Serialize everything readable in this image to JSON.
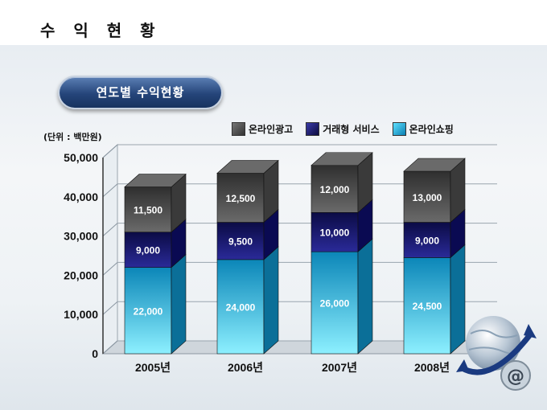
{
  "page_title": "수 익 현 황",
  "banner_title": "연도별  수익현황",
  "unit_label": "(단위 : 백만원)",
  "colors": {
    "online_ad": "#4a4a4a",
    "trade_service": "#141466",
    "online_shopping": "#1aa9d6"
  },
  "chart_data": {
    "type": "bar",
    "stacked": true,
    "categories": [
      "2005년",
      "2006년",
      "2007년",
      "2008년"
    ],
    "series": [
      {
        "name": "온라인쇼핑",
        "values": [
          22000,
          24000,
          26000,
          24500
        ]
      },
      {
        "name": "거래형 서비스",
        "values": [
          9000,
          9500,
          10000,
          9000
        ]
      },
      {
        "name": "온라인광고",
        "values": [
          11500,
          12500,
          12000,
          13000
        ]
      }
    ],
    "data_labels": [
      [
        "22,000",
        "24,000",
        "26,000",
        "24,500"
      ],
      [
        "9,000",
        "9,500",
        "10,000",
        "9,000"
      ],
      [
        "11,500",
        "12,500",
        "12,000",
        "13,000"
      ]
    ],
    "ylim": [
      0,
      50000
    ],
    "yticks": [
      0,
      10000,
      20000,
      30000,
      40000,
      50000
    ],
    "ytick_labels": [
      "0",
      "10,000",
      "20,000",
      "30,000",
      "40,000",
      "50,000"
    ],
    "grid": true,
    "legend_position": "top-right",
    "legend": [
      "온라인광고",
      "거래형 서비스",
      "온라인쇼핑"
    ]
  },
  "decoration": {
    "globe_icon": "globe-at-icon"
  }
}
